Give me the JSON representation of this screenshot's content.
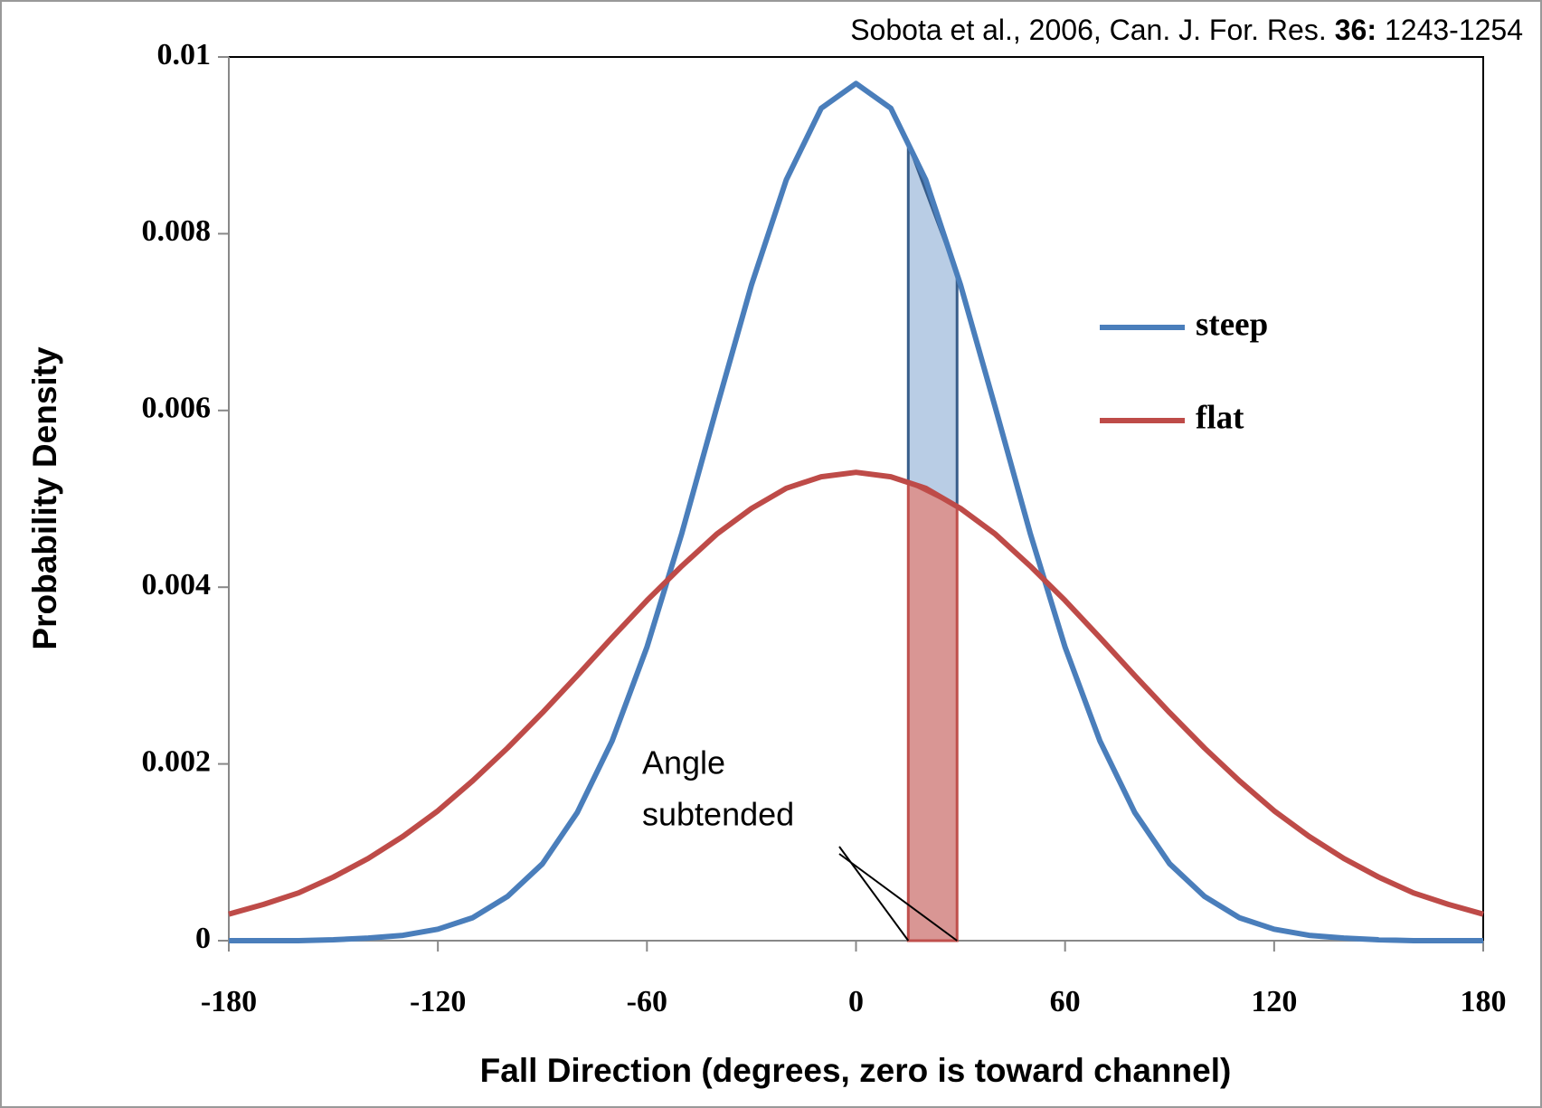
{
  "chart_data": {
    "type": "line",
    "citation": [
      "Sobota et al., 2006, Can. J. For. Res.",
      "36:",
      "1243-1254"
    ],
    "xlabel": "Fall Direction (degrees, zero is toward channel)",
    "ylabel": "Probability Density",
    "x": [
      -180,
      -170,
      -160,
      -150,
      -140,
      -130,
      -120,
      -110,
      -100,
      -90,
      -80,
      -70,
      -60,
      -50,
      -40,
      -30,
      -20,
      -10,
      0,
      10,
      20,
      30,
      40,
      50,
      60,
      70,
      80,
      90,
      100,
      110,
      120,
      130,
      140,
      150,
      160,
      170,
      180
    ],
    "series": [
      {
        "name": "steep",
        "color": "#4a7ebb",
        "values": [
          0,
          0,
          0,
          1e-05,
          3e-05,
          6e-05,
          0.00013,
          0.00026,
          0.0005,
          0.00087,
          0.00145,
          0.00226,
          0.00332,
          0.00461,
          0.00603,
          0.00742,
          0.00861,
          0.00942,
          0.0097,
          0.00942,
          0.00861,
          0.00742,
          0.00603,
          0.00461,
          0.00332,
          0.00226,
          0.00145,
          0.00087,
          0.0005,
          0.00026,
          0.00013,
          6e-05,
          3e-05,
          1e-05,
          0,
          0,
          0
        ]
      },
      {
        "name": "flat",
        "color": "#be4b48",
        "values": [
          0.0003,
          0.00041,
          0.00054,
          0.00072,
          0.00093,
          0.00118,
          0.00147,
          0.00181,
          0.00218,
          0.00258,
          0.003,
          0.00343,
          0.00385,
          0.00424,
          0.0046,
          0.00489,
          0.00512,
          0.00525,
          0.0053,
          0.00525,
          0.00512,
          0.00489,
          0.0046,
          0.00424,
          0.00385,
          0.00343,
          0.003,
          0.00258,
          0.00218,
          0.00181,
          0.00147,
          0.00118,
          0.00093,
          0.00072,
          0.00054,
          0.00041,
          0.0003
        ]
      }
    ],
    "shaded_region": [
      15,
      29
    ],
    "annotation": [
      "Angle",
      "subtended"
    ],
    "xlim": [
      -180,
      180
    ],
    "xticks": [
      -180,
      -120,
      -60,
      0,
      60,
      120,
      180
    ],
    "ylim": [
      0,
      0.01
    ],
    "yticks": [
      0,
      0.002,
      0.004,
      0.006,
      0.008,
      0.01
    ],
    "legend": "right"
  }
}
